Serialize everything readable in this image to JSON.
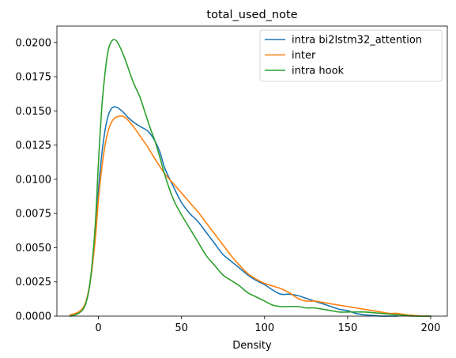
{
  "chart_data": {
    "type": "line",
    "title": "total_used_note",
    "xlabel": "Density",
    "ylabel": "",
    "xlim": [
      -25,
      210
    ],
    "ylim": [
      0,
      0.0212
    ],
    "xticks": [
      0,
      50,
      100,
      150,
      200
    ],
    "xtick_labels": [
      "0",
      "50",
      "100",
      "150",
      "200"
    ],
    "yticks": [
      0,
      0.0025,
      0.005,
      0.0075,
      0.01,
      0.0125,
      0.015,
      0.0175,
      0.02
    ],
    "ytick_labels": [
      "0.0000",
      "0.0025",
      "0.0050",
      "0.0075",
      "0.0100",
      "0.0125",
      "0.0150",
      "0.0175",
      "0.0200"
    ],
    "grid": false,
    "legend_position": "top-right",
    "series": [
      {
        "name": "intra bi2lstm32_attention",
        "color": "#1f77b4",
        "x": [
          -17,
          -12,
          -8,
          -5,
          -2,
          0,
          2,
          4,
          6,
          8,
          10,
          12,
          15,
          18,
          22,
          26,
          30,
          34,
          37,
          40,
          45,
          50,
          55,
          60,
          65,
          70,
          75,
          80,
          85,
          90,
          95,
          100,
          105,
          110,
          115,
          120,
          125,
          130,
          135,
          140,
          145,
          150,
          155,
          160,
          165,
          170,
          175,
          180
        ],
        "y": [
          0.0,
          0.0002,
          0.0008,
          0.0025,
          0.0058,
          0.0092,
          0.0118,
          0.0136,
          0.0147,
          0.0152,
          0.0153,
          0.0152,
          0.0149,
          0.0145,
          0.0141,
          0.0138,
          0.0135,
          0.0128,
          0.012,
          0.0108,
          0.0095,
          0.0083,
          0.0075,
          0.0069,
          0.0061,
          0.0053,
          0.0045,
          0.004,
          0.0035,
          0.003,
          0.0026,
          0.0023,
          0.0019,
          0.0016,
          0.0016,
          0.0015,
          0.0013,
          0.0011,
          0.0009,
          0.0007,
          0.0005,
          0.0004,
          0.0002,
          0.0001,
          5e-05,
          0.0,
          0.0,
          0.0
        ]
      },
      {
        "name": "inter",
        "color": "#ff7f0e",
        "x": [
          -17,
          -12,
          -8,
          -5,
          -2,
          0,
          2,
          4,
          6,
          8,
          10,
          12,
          15,
          18,
          22,
          26,
          30,
          35,
          40,
          45,
          50,
          55,
          60,
          65,
          70,
          75,
          80,
          85,
          90,
          95,
          100,
          105,
          110,
          115,
          120,
          125,
          130,
          135,
          140,
          145,
          150,
          155,
          160,
          165,
          170,
          175,
          180,
          185,
          190,
          195,
          200
        ],
        "y": [
          0.0001,
          0.0003,
          0.0009,
          0.0025,
          0.0055,
          0.0085,
          0.0108,
          0.0125,
          0.0136,
          0.0142,
          0.0145,
          0.0146,
          0.0146,
          0.0143,
          0.0137,
          0.013,
          0.0123,
          0.0113,
          0.0104,
          0.0097,
          0.009,
          0.0083,
          0.0076,
          0.0068,
          0.006,
          0.0052,
          0.0044,
          0.0037,
          0.0031,
          0.0027,
          0.0024,
          0.0022,
          0.002,
          0.0017,
          0.0013,
          0.0011,
          0.0011,
          0.001,
          0.0009,
          0.0008,
          0.0007,
          0.0006,
          0.0005,
          0.0004,
          0.0003,
          0.0002,
          0.0002,
          0.0001,
          5e-05,
          0.0,
          0.0
        ]
      },
      {
        "name": "intra hook",
        "color": "#2ca02c",
        "x": [
          -17,
          -12,
          -8,
          -5,
          -2,
          0,
          2,
          4,
          6,
          8,
          9,
          10,
          11,
          12,
          14,
          16,
          18,
          20,
          22,
          25,
          28,
          31,
          34,
          37,
          40,
          43,
          46,
          50,
          55,
          60,
          65,
          70,
          75,
          80,
          85,
          90,
          95,
          100,
          105,
          110,
          115,
          120,
          125,
          130,
          135,
          140,
          145,
          150,
          160,
          170,
          180,
          190,
          200
        ],
        "y": [
          0.0,
          0.0002,
          0.0008,
          0.0025,
          0.0065,
          0.0112,
          0.0152,
          0.0178,
          0.0195,
          0.0201,
          0.0202,
          0.0202,
          0.0201,
          0.0199,
          0.0194,
          0.0188,
          0.0181,
          0.0174,
          0.0168,
          0.016,
          0.0149,
          0.0138,
          0.0128,
          0.0116,
          0.0103,
          0.0092,
          0.0083,
          0.0074,
          0.0064,
          0.0054,
          0.0044,
          0.0037,
          0.003,
          0.0026,
          0.0022,
          0.0017,
          0.0014,
          0.0011,
          0.0008,
          0.0007,
          0.0007,
          0.0007,
          0.0006,
          0.0006,
          0.0005,
          0.0004,
          0.0003,
          0.0003,
          0.0003,
          0.0002,
          0.0001,
          0.0,
          0.0
        ]
      }
    ]
  }
}
